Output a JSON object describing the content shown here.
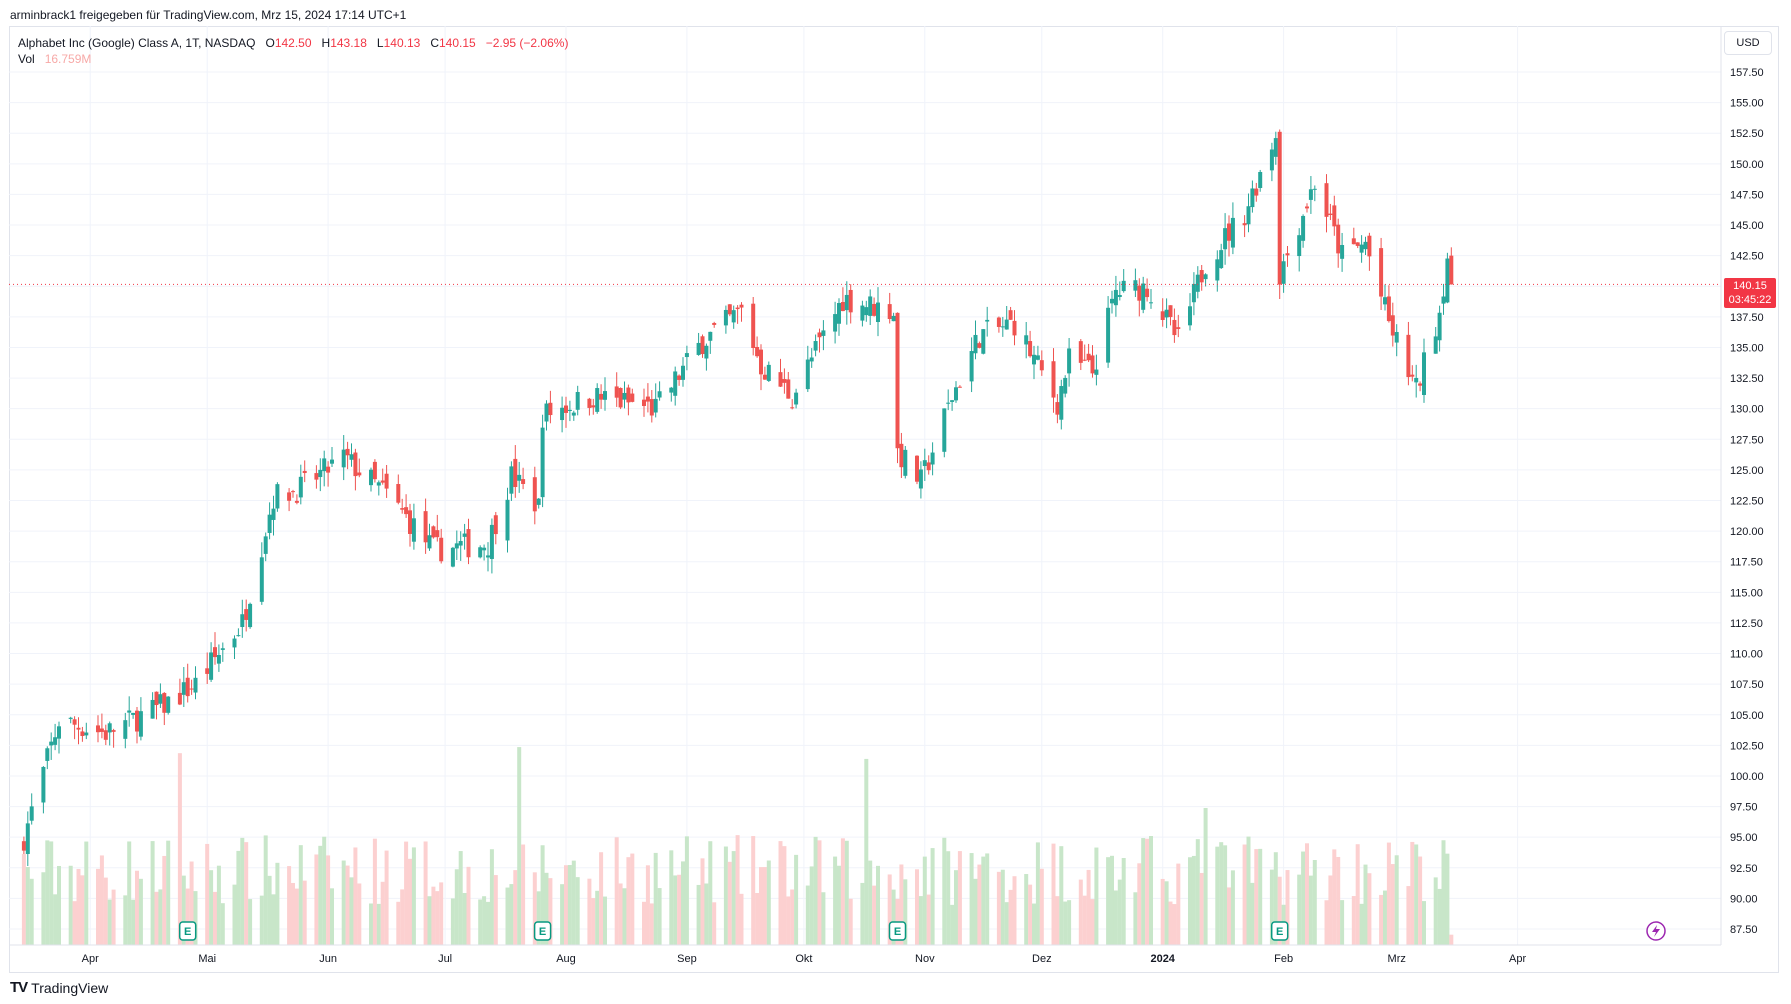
{
  "header": {
    "shared_by": "arminbrack1 freigegeben für TradingView.com, Mrz 15, 2024 17:14 UTC+1"
  },
  "legend": {
    "symbol": "Alphabet Inc (Google) Class A, 1T, NASDAQ",
    "o_label": "O",
    "o_val": "142.50",
    "h_label": "H",
    "h_val": "143.18",
    "l_label": "L",
    "l_val": "140.13",
    "c_label": "C",
    "c_val": "140.15",
    "change": "−2.95 (−2.06%)",
    "vol_label": "Vol",
    "vol_val": "16.759M"
  },
  "currency_button": "USD",
  "last_price": {
    "price": "140.15",
    "countdown": "03:45:22"
  },
  "brand": {
    "name": "TradingView"
  },
  "colors": {
    "up": "#26a69a",
    "down": "#ef5350",
    "up_vol": "#c8e6c9",
    "down_vol": "#fcd0d0",
    "grid": "#f0f3fa"
  },
  "chart_data": {
    "type": "candlestick",
    "title": "Alphabet Inc (Google) Class A, 1T, NASDAQ",
    "y_axis_labels": [
      "157.50",
      "155.00",
      "152.50",
      "150.00",
      "147.50",
      "145.00",
      "142.50",
      "140.00",
      "137.50",
      "135.00",
      "132.50",
      "130.00",
      "127.50",
      "125.00",
      "122.50",
      "120.00",
      "117.50",
      "115.00",
      "112.50",
      "110.00",
      "107.50",
      "105.00",
      "102.50",
      "100.00",
      "97.50",
      "95.00",
      "92.50",
      "90.00",
      "87.50"
    ],
    "ylim": [
      87.5,
      157.5
    ],
    "x_axis_labels": [
      "Apr",
      "Mai",
      "Jun",
      "Jul",
      "Aug",
      "Sep",
      "Okt",
      "Nov",
      "Dez",
      "2024",
      "Feb",
      "Mrz",
      "Apr"
    ],
    "earnings_markers": [
      "E",
      "E",
      "E",
      "E"
    ],
    "close_anchors": [
      [
        "2023-03-15",
        95.0
      ],
      [
        "2023-03-24",
        104.5
      ],
      [
        "2023-04-05",
        103.5
      ],
      [
        "2023-04-20",
        105.8
      ],
      [
        "2023-04-28",
        107.5
      ],
      [
        "2023-05-10",
        112.5
      ],
      [
        "2023-05-18",
        122.8
      ],
      [
        "2023-05-25",
        123.5
      ],
      [
        "2023-06-05",
        126.0
      ],
      [
        "2023-06-16",
        123.0
      ],
      [
        "2023-06-28",
        118.5
      ],
      [
        "2023-07-12",
        119.0
      ],
      [
        "2023-07-18",
        124.5
      ],
      [
        "2023-07-25",
        122.0
      ],
      [
        "2023-07-26",
        129.5
      ],
      [
        "2023-08-08",
        131.0
      ],
      [
        "2023-08-24",
        130.0
      ],
      [
        "2023-09-05",
        135.5
      ],
      [
        "2023-09-15",
        138.0
      ],
      [
        "2023-09-20",
        133.5
      ],
      [
        "2023-09-28",
        131.0
      ],
      [
        "2023-10-11",
        139.0
      ],
      [
        "2023-10-24",
        138.0
      ],
      [
        "2023-10-25",
        126.5
      ],
      [
        "2023-10-31",
        124.0
      ],
      [
        "2023-11-08",
        131.0
      ],
      [
        "2023-11-15",
        136.0
      ],
      [
        "2023-11-24",
        137.0
      ],
      [
        "2023-12-05",
        130.5
      ],
      [
        "2023-12-08",
        134.0
      ],
      [
        "2023-12-14",
        133.0
      ],
      [
        "2023-12-20",
        139.5
      ],
      [
        "2023-12-28",
        140.0
      ],
      [
        "2024-01-05",
        135.5
      ],
      [
        "2024-01-12",
        142.0
      ],
      [
        "2024-01-22",
        146.0
      ],
      [
        "2024-01-30",
        152.5
      ],
      [
        "2024-01-31",
        141.0
      ],
      [
        "2024-02-09",
        148.5
      ],
      [
        "2024-02-16",
        142.5
      ],
      [
        "2024-02-22",
        143.5
      ],
      [
        "2024-02-28",
        137.0
      ],
      [
        "2024-03-06",
        131.5
      ],
      [
        "2024-03-12",
        138.0
      ],
      [
        "2024-03-14",
        142.5
      ],
      [
        "2024-03-15",
        140.15
      ]
    ],
    "last_candle": {
      "open": 142.5,
      "high": 143.18,
      "low": 140.13,
      "close": 140.15,
      "volume": "16.759M"
    }
  }
}
